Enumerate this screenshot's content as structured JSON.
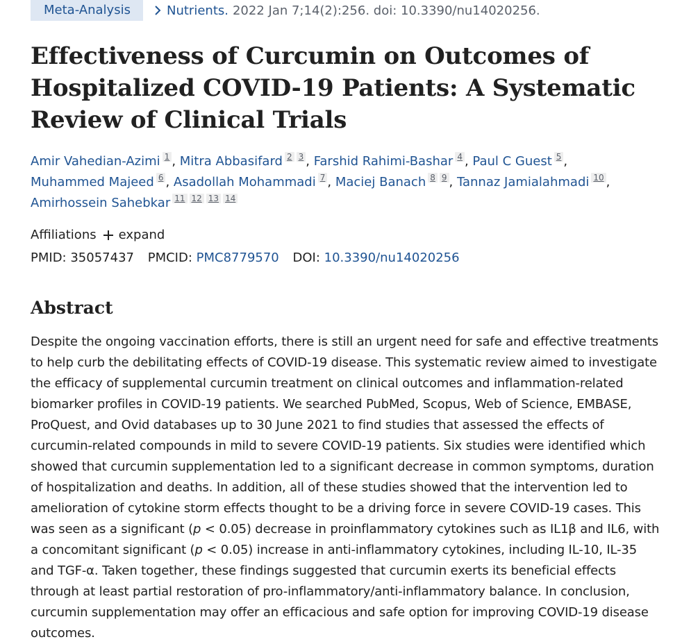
{
  "header": {
    "pub_type": "Meta-Analysis",
    "journal": "Nutrients.",
    "citation": "2022 Jan 7;14(2):256. doi: 10.3390/nu14020256."
  },
  "title": {
    "line1": "Effectiveness of Curcumin on Outcomes of",
    "line2": "Hospitalized COVID-19 Patients: A Systematic",
    "line3": "Review of Clinical Trials"
  },
  "authors": [
    {
      "name": "Amir Vahedian-Azimi",
      "affs": [
        "1"
      ]
    },
    {
      "name": "Mitra Abbasifard",
      "affs": [
        "2",
        "3"
      ]
    },
    {
      "name": "Farshid Rahimi-Bashar",
      "affs": [
        "4"
      ]
    },
    {
      "name": "Paul C Guest",
      "affs": [
        "5"
      ]
    },
    {
      "name": "Muhammed Majeed",
      "affs": [
        "6"
      ]
    },
    {
      "name": "Asadollah Mohammadi",
      "affs": [
        "7"
      ]
    },
    {
      "name": "Maciej Banach",
      "affs": [
        "8",
        "9"
      ]
    },
    {
      "name": "Tannaz Jamialahmadi",
      "affs": [
        "10"
      ]
    },
    {
      "name": "Amirhossein Sahebkar",
      "affs": [
        "11",
        "12",
        "13",
        "14"
      ]
    }
  ],
  "affiliations": {
    "label": "Affiliations",
    "expand_label": "expand"
  },
  "identifiers": {
    "pmid_label": "PMID:",
    "pmid": "35057437",
    "pmcid_label": "PMCID:",
    "pmcid": "PMC8779570",
    "doi_label": "DOI:",
    "doi": "10.3390/nu14020256"
  },
  "abstract": {
    "heading": "Abstract",
    "part1": "Despite the ongoing vaccination efforts, there is still an urgent need for safe and effective treatments to help curb the debilitating effects of COVID-19 disease. This systematic review aimed to investigate the efficacy of supplemental curcumin treatment on clinical outcomes and inflammation-related biomarker profiles in COVID-19 patients. We searched PubMed, Scopus, Web of Science, EMBASE, ProQuest, and Ovid databases up to 30 June 2021 to find studies that assessed the effects of curcumin-related compounds in mild to severe COVID-19 patients. Six studies were identified which showed that curcumin supplementation led to a significant decrease in common symptoms, duration of hospitalization and deaths. In addition, all of these studies showed that the intervention led to amelioration of cytokine storm effects thought to be a driving force in severe COVID-19 cases. This was seen as a significant (",
    "p1": "p",
    "part2": " < 0.05) decrease in proinflammatory cytokines such as IL1β and IL6, with a concomitant significant (",
    "p2": "p",
    "part3": " < 0.05) increase in anti-inflammatory cytokines, including IL-10, IL-35 and TGF-α. Taken together, these findings suggested that curcumin exerts its beneficial effects through at least partial restoration of pro-inflammatory/anti-inflammatory balance. In conclusion, curcumin supplementation may offer an efficacious and safe option for improving COVID-19 disease outcomes."
  },
  "colors": {
    "link": "#205493",
    "pub_type_bg": "#dee7f3",
    "text": "#212121",
    "muted": "#5b616b"
  }
}
